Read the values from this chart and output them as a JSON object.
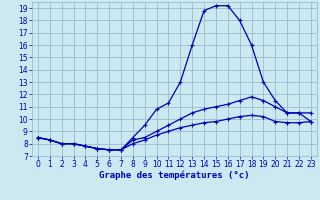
{
  "title": "Graphe des températures (°c)",
  "background_color": "#cce8f0",
  "grid_color": "#99bbcc",
  "line_color": "#0000bb",
  "xlim": [
    -0.5,
    23.5
  ],
  "ylim": [
    7,
    19.5
  ],
  "xtick_labels": [
    "0",
    "1",
    "2",
    "3",
    "4",
    "5",
    "6",
    "7",
    "8",
    "9",
    "10",
    "11",
    "12",
    "13",
    "14",
    "15",
    "16",
    "17",
    "18",
    "19",
    "20",
    "21",
    "22",
    "23"
  ],
  "xticks": [
    0,
    1,
    2,
    3,
    4,
    5,
    6,
    7,
    8,
    9,
    10,
    11,
    12,
    13,
    14,
    15,
    16,
    17,
    18,
    19,
    20,
    21,
    22,
    23
  ],
  "yticks": [
    7,
    8,
    9,
    10,
    11,
    12,
    13,
    14,
    15,
    16,
    17,
    18,
    19
  ],
  "line1_x": [
    0,
    1,
    2,
    3,
    4,
    5,
    6,
    7,
    8,
    9,
    10,
    11,
    12,
    13,
    14,
    15,
    16,
    17,
    18,
    19,
    20,
    21,
    22,
    23
  ],
  "line1_y": [
    8.5,
    8.3,
    8.0,
    8.0,
    7.8,
    7.6,
    7.5,
    7.5,
    8.5,
    9.5,
    10.8,
    11.3,
    13.0,
    16.0,
    18.8,
    19.2,
    19.2,
    18.0,
    16.0,
    13.0,
    11.5,
    10.5,
    10.5,
    9.8
  ],
  "line2_x": [
    0,
    1,
    2,
    3,
    4,
    5,
    6,
    7,
    8,
    9,
    10,
    11,
    12,
    13,
    14,
    15,
    16,
    17,
    18,
    19,
    20,
    21,
    22,
    23
  ],
  "line2_y": [
    8.5,
    8.3,
    8.0,
    8.0,
    7.8,
    7.6,
    7.5,
    7.5,
    8.3,
    8.5,
    9.0,
    9.5,
    10.0,
    10.5,
    10.8,
    11.0,
    11.2,
    11.5,
    11.8,
    11.5,
    11.0,
    10.5,
    10.5,
    10.5
  ],
  "line3_x": [
    0,
    1,
    2,
    3,
    4,
    5,
    6,
    7,
    8,
    9,
    10,
    11,
    12,
    13,
    14,
    15,
    16,
    17,
    18,
    19,
    20,
    21,
    22,
    23
  ],
  "line3_y": [
    8.5,
    8.3,
    8.0,
    8.0,
    7.8,
    7.6,
    7.5,
    7.5,
    8.0,
    8.3,
    8.7,
    9.0,
    9.3,
    9.5,
    9.7,
    9.8,
    10.0,
    10.2,
    10.3,
    10.2,
    9.8,
    9.7,
    9.7,
    9.8
  ],
  "tick_fontsize": 5.5,
  "xlabel_fontsize": 6.5
}
